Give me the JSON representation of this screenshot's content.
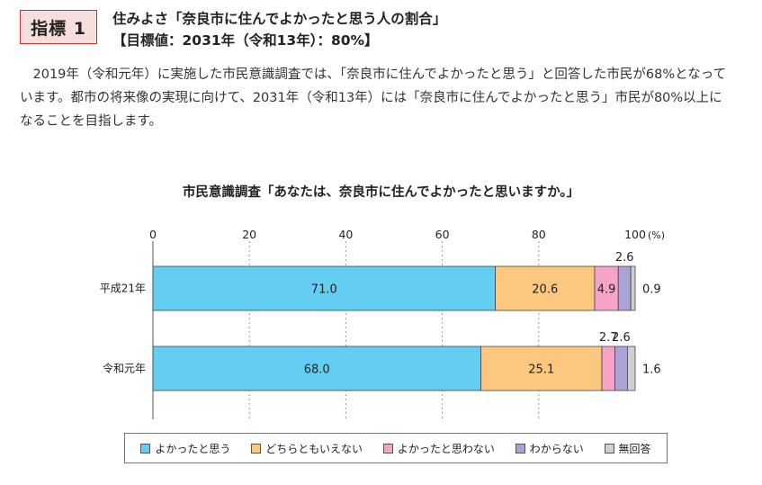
{
  "indicator": {
    "badge": "指標 1",
    "title": "住みよさ「奈良市に住んでよかったと思う人の割合」",
    "target": "【目標値：2031年（令和13年）：80%】"
  },
  "intro_text": "2019年（令和元年）に実施した市民意識調査では、「奈良市に住んでよかったと思う」と回答した市民が68%となっています。都市の将来像の実現に向けて、2031年（令和13年）には「奈良市に住んでよかったと思う」市民が80%以上になることを目指します。",
  "chart_data": {
    "type": "bar",
    "orientation": "horizontal-stacked-100",
    "title": "市民意識調査「あなたは、奈良市に住んでよかったと思いますか。」",
    "xlim": [
      0,
      100
    ],
    "ticks": [
      "0",
      "20",
      "40",
      "60",
      "80",
      "100"
    ],
    "unit_label": "(%)",
    "categories": [
      "平成21年",
      "令和元年"
    ],
    "series": [
      {
        "name": "よかったと思う",
        "color": "#63cdf2",
        "values": [
          71.0,
          68.0
        ],
        "labels": [
          "71.0",
          "68.0"
        ]
      },
      {
        "name": "どちらともいえない",
        "color": "#fcc77f",
        "values": [
          20.6,
          25.1
        ],
        "labels": [
          "20.6",
          "25.1"
        ]
      },
      {
        "name": "よかったと思わない",
        "color": "#f5a3c7",
        "values": [
          4.9,
          2.7
        ],
        "labels": [
          "4.9",
          "2.7"
        ]
      },
      {
        "name": "わからない",
        "color": "#a9a3d6",
        "values": [
          2.6,
          2.6
        ],
        "labels": [
          "2.6",
          "2.6"
        ]
      },
      {
        "name": "無回答",
        "color": "#cfcfcf",
        "values": [
          0.9,
          1.6
        ],
        "labels": [
          "0.9",
          "1.6"
        ]
      }
    ],
    "grid": true,
    "legend_position": "bottom"
  }
}
